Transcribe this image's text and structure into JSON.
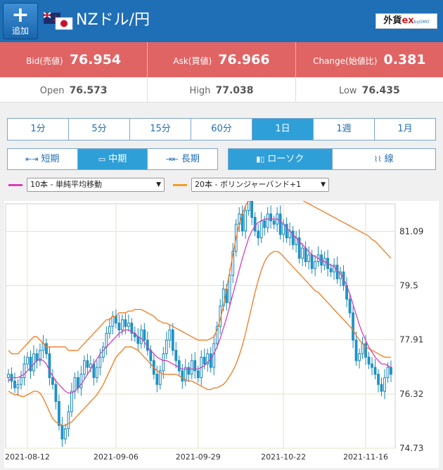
{
  "header": {
    "add_label": "追加",
    "pair_title": "NZドル/円",
    "brand_main": "外貨",
    "brand_ex": "ex",
    "brand_sub": "byGMO"
  },
  "quote": {
    "bid_label": "Bid(売値)",
    "bid_value": "76.954",
    "ask_label": "Ask(買値)",
    "ask_value": "76.966",
    "change_label": "Change(始値比)",
    "change_value": "0.381"
  },
  "ohl": {
    "open_label": "Open",
    "open_value": "76.573",
    "high_label": "High",
    "high_value": "77.038",
    "low_label": "Low",
    "low_value": "76.435"
  },
  "timeframes": [
    "1分",
    "5分",
    "15分",
    "60分",
    "1日",
    "1週",
    "1月"
  ],
  "active_timeframe": "1日",
  "terms": {
    "short": "短期",
    "mid": "中期",
    "long": "長期"
  },
  "chart_types": {
    "candle": "ローソク",
    "line": "線"
  },
  "indicators": {
    "sma_label": "10本 - 単純平均移動",
    "bb_label": "20本 - ボリンジャーバンド+1",
    "sma_color": "#d63fb4",
    "bb_color": "#f0a020"
  },
  "colors": {
    "header": "#1f6fb6",
    "quote_bar": "#e06464",
    "active_button": "#2f9fd8",
    "candle": "#1a9bd0",
    "band": "#f07a1e"
  },
  "chart_data": {
    "type": "candlestick",
    "x_ticks": [
      "2021-08-12",
      "2021-09-06",
      "2021-09-29",
      "2021-10-22",
      "2021-11-16"
    ],
    "y_ticks": [
      "81.09",
      "79.5",
      "77.91",
      "76.32",
      "74.73"
    ],
    "ylim": [
      74.73,
      81.9
    ],
    "close": [
      76.9,
      76.7,
      76.5,
      76.6,
      76.8,
      77.2,
      77.4,
      77.0,
      77.5,
      77.3,
      77.6,
      77.8,
      77.5,
      76.8,
      76.6,
      76.1,
      75.4,
      75.0,
      75.3,
      75.8,
      76.4,
      76.8,
      76.5,
      76.9,
      77.3,
      77.1,
      77.2,
      76.8,
      77.1,
      77.4,
      77.7,
      78.1,
      78.3,
      78.6,
      78.4,
      78.2,
      78.5,
      78.3,
      78.4,
      78.1,
      78.0,
      77.8,
      78.2,
      77.9,
      77.6,
      77.3,
      76.9,
      76.6,
      77.0,
      77.5,
      77.9,
      78.2,
      77.6,
      77.3,
      77.0,
      76.7,
      77.1,
      76.9,
      77.3,
      77.0,
      76.8,
      77.4,
      77.2,
      77.5,
      77.1,
      77.8,
      78.3,
      78.9,
      79.4,
      79.0,
      79.8,
      80.5,
      81.3,
      81.6,
      81.1,
      81.7,
      82.0,
      81.5,
      81.1,
      80.9,
      81.4,
      81.2,
      81.6,
      81.4,
      81.3,
      81.6,
      81.0,
      81.3,
      80.9,
      81.1,
      80.7,
      80.9,
      80.3,
      80.6,
      80.2,
      80.4,
      80.0,
      80.2,
      80.4,
      80.1,
      80.3,
      80.0,
      79.9,
      80.1,
      79.7,
      79.9,
      79.5,
      79.1,
      78.7,
      77.9,
      77.3,
      77.5,
      77.8,
      77.4,
      77.2,
      77.1,
      76.9,
      76.6,
      76.4,
      76.8,
      77.1,
      76.9
    ],
    "sma": [
      76.7,
      76.8,
      76.8,
      76.8,
      76.85,
      76.9,
      77.0,
      77.1,
      77.2,
      77.3,
      77.35,
      77.3,
      77.2,
      77.0,
      76.85,
      76.7,
      76.6,
      76.5,
      76.4,
      76.35,
      76.35,
      76.4,
      76.5,
      76.6,
      76.75,
      76.9,
      77.05,
      77.2,
      77.35,
      77.5,
      77.6,
      77.7,
      77.8,
      77.9,
      78.0,
      78.1,
      78.15,
      78.2,
      78.2,
      78.15,
      78.1,
      78.0,
      77.95,
      77.85,
      77.7,
      77.6,
      77.5,
      77.4,
      77.35,
      77.3,
      77.3,
      77.25,
      77.2,
      77.15,
      77.1,
      77.05,
      77.05,
      77.05,
      77.05,
      77.05,
      77.05,
      77.1,
      77.15,
      77.25,
      77.35,
      77.5,
      77.7,
      77.95,
      78.25,
      78.55,
      78.9,
      79.25,
      79.6,
      79.95,
      80.3,
      80.6,
      80.9,
      81.1,
      81.25,
      81.35,
      81.4,
      81.45,
      81.45,
      81.45,
      81.45,
      81.45,
      81.4,
      81.3,
      81.2,
      81.1,
      81.0,
      80.9,
      80.8,
      80.7,
      80.6,
      80.5,
      80.4,
      80.35,
      80.3,
      80.25,
      80.2,
      80.15,
      80.1,
      80.05,
      79.95,
      79.85,
      79.7,
      79.5,
      79.25,
      78.95,
      78.65,
      78.35,
      78.1,
      77.9,
      77.7,
      77.55,
      77.4,
      77.3,
      77.2,
      77.2,
      77.15,
      77.1
    ],
    "bb_upper": [
      77.6,
      77.5,
      77.5,
      77.5,
      77.6,
      77.7,
      77.8,
      77.9,
      78.0,
      78.0,
      77.9,
      77.8,
      77.7,
      77.7,
      77.7,
      77.7,
      77.7,
      77.7,
      77.7,
      77.6,
      77.6,
      77.6,
      77.6,
      77.7,
      77.8,
      77.9,
      78.0,
      78.1,
      78.2,
      78.3,
      78.4,
      78.5,
      78.5,
      78.6,
      78.6,
      78.7,
      78.7,
      78.7,
      78.75,
      78.75,
      78.8,
      78.8,
      78.8,
      78.75,
      78.7,
      78.65,
      78.6,
      78.5,
      78.45,
      78.4,
      78.4,
      78.35,
      78.3,
      78.25,
      78.2,
      78.15,
      78.1,
      78.05,
      78.0,
      77.95,
      77.9,
      77.9,
      77.9,
      77.9,
      77.95,
      78.0,
      78.2,
      78.5,
      78.9,
      79.4,
      79.9,
      80.4,
      80.9,
      81.3,
      81.6,
      81.85,
      82.0,
      82.1,
      82.15,
      82.2,
      82.25,
      82.3,
      82.35,
      82.35,
      82.35,
      82.3,
      82.3,
      82.25,
      82.2,
      82.2,
      82.15,
      82.1,
      82.05,
      82.0,
      81.95,
      81.9,
      81.85,
      81.8,
      81.75,
      81.7,
      81.65,
      81.6,
      81.55,
      81.5,
      81.45,
      81.4,
      81.35,
      81.3,
      81.25,
      81.2,
      81.15,
      81.1,
      81.05,
      81.0,
      80.95,
      80.85,
      80.8,
      80.7,
      80.6,
      80.5,
      80.4,
      80.3
    ],
    "bb_lower": [
      76.4,
      76.35,
      76.3,
      76.3,
      76.25,
      76.25,
      76.3,
      76.35,
      76.4,
      76.4,
      76.35,
      76.2,
      76.0,
      75.8,
      75.6,
      75.5,
      75.45,
      75.4,
      75.4,
      75.45,
      75.5,
      75.6,
      75.7,
      75.8,
      75.9,
      76.0,
      76.1,
      76.2,
      76.3,
      76.45,
      76.6,
      76.8,
      77.0,
      77.2,
      77.4,
      77.5,
      77.6,
      77.7,
      77.7,
      77.7,
      77.65,
      77.6,
      77.5,
      77.4,
      77.3,
      77.2,
      77.1,
      77.0,
      76.95,
      76.9,
      76.9,
      76.9,
      76.9,
      76.9,
      76.85,
      76.8,
      76.75,
      76.7,
      76.7,
      76.65,
      76.6,
      76.55,
      76.5,
      76.45,
      76.45,
      76.5,
      76.5,
      76.55,
      76.6,
      76.7,
      76.85,
      77.0,
      77.2,
      77.45,
      77.75,
      78.1,
      78.5,
      78.9,
      79.3,
      79.65,
      79.95,
      80.2,
      80.35,
      80.45,
      80.5,
      80.5,
      80.45,
      80.35,
      80.25,
      80.15,
      80.05,
      79.95,
      79.85,
      79.75,
      79.65,
      79.55,
      79.45,
      79.35,
      79.3,
      79.2,
      79.1,
      79.0,
      78.9,
      78.8,
      78.7,
      78.6,
      78.5,
      78.4,
      78.3,
      78.2,
      78.05,
      77.9,
      77.8,
      77.7,
      77.65,
      77.6,
      77.55,
      77.5,
      77.45,
      77.4,
      77.4,
      77.4
    ]
  }
}
